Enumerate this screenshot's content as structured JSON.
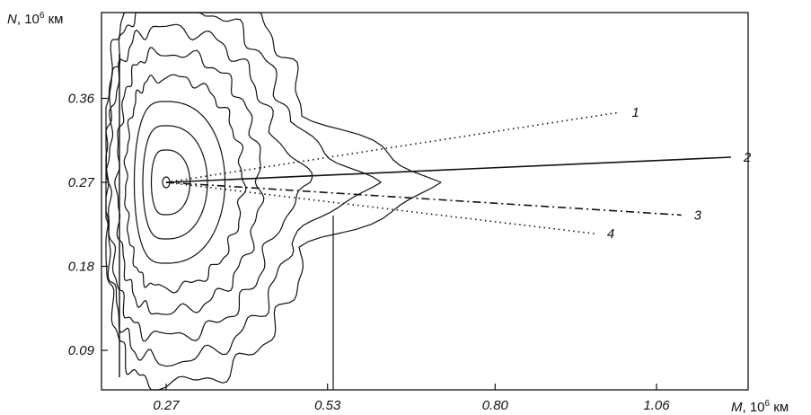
{
  "chart_data": {
    "type": "contour",
    "title": "",
    "xlabel": {
      "var": "M",
      "sep": ", ",
      "unit": "10",
      "exp": "6",
      "rest": " км"
    },
    "ylabel": {
      "var": "N",
      "sep": ", ",
      "unit": "10",
      "exp": "6",
      "rest": " км"
    },
    "x_ticks": [
      "0.27",
      "0.53",
      "0.80",
      "1.06"
    ],
    "y_ticks": [
      "0.36",
      "0.27",
      "0.18",
      "0.09"
    ],
    "x_tick_values": [
      0.27,
      0.53,
      0.8,
      1.06
    ],
    "y_tick_values": [
      0.36,
      0.27,
      0.18,
      0.09
    ],
    "xlim": [
      0.0,
      1.3
    ],
    "ylim": [
      0.0,
      0.45
    ],
    "contour_center": {
      "x": 0.27,
      "y": 0.27
    },
    "contour_levels": 8,
    "series": [
      {
        "name": "1",
        "style": "dotted",
        "x": [
          0.27,
          1.0
        ],
        "y": [
          0.27,
          0.345
        ]
      },
      {
        "name": "2",
        "style": "solid",
        "x": [
          0.27,
          1.18
        ],
        "y": [
          0.27,
          0.297
        ]
      },
      {
        "name": "3",
        "style": "dashdot",
        "x": [
          0.27,
          1.1
        ],
        "y": [
          0.27,
          0.235
        ]
      },
      {
        "name": "4",
        "style": "dotted",
        "x": [
          0.27,
          0.96
        ],
        "y": [
          0.27,
          0.215
        ]
      }
    ],
    "grid": false,
    "legend": "inline-labels"
  }
}
